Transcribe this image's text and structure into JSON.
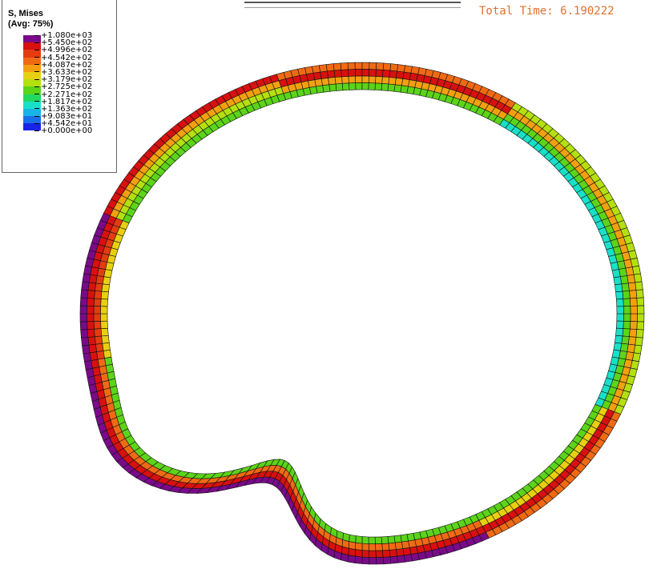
{
  "legend": {
    "title": "S, Mises",
    "subtitle": "(Avg: 75%)",
    "entries": [
      {
        "label": "+1.080e+03",
        "color": "#7a0a8a"
      },
      {
        "label": "+5.450e+02",
        "color": "#d81010"
      },
      {
        "label": "+4.996e+02",
        "color": "#e43c10"
      },
      {
        "label": "+4.542e+02",
        "color": "#f06a14"
      },
      {
        "label": "+4.087e+02",
        "color": "#f2a010"
      },
      {
        "label": "+3.633e+02",
        "color": "#e8d010"
      },
      {
        "label": "+3.179e+02",
        "color": "#b4e010"
      },
      {
        "label": "+2.725e+02",
        "color": "#5cd41a"
      },
      {
        "label": "+2.271e+02",
        "color": "#22d860"
      },
      {
        "label": "+1.817e+02",
        "color": "#18e0c8"
      },
      {
        "label": "+1.363e+02",
        "color": "#18b4e8"
      },
      {
        "label": "+9.083e+01",
        "color": "#1870e8"
      },
      {
        "label": "+4.542e+01",
        "color": "#1824e8"
      },
      {
        "label": "+0.000e+00",
        "color": "#200808"
      }
    ]
  },
  "status": {
    "total_time_label": "Total Time: 6.190222"
  },
  "colors": {
    "purple": "#7a0a8a",
    "red": "#d81010",
    "red_orange": "#e43c10",
    "orange": "#f06a14",
    "amber": "#f2a010",
    "yellow": "#e8d010",
    "yellow_green": "#b4e010",
    "green": "#5cd41a",
    "cyan": "#18e0c8",
    "blue": "#18b4e8"
  }
}
